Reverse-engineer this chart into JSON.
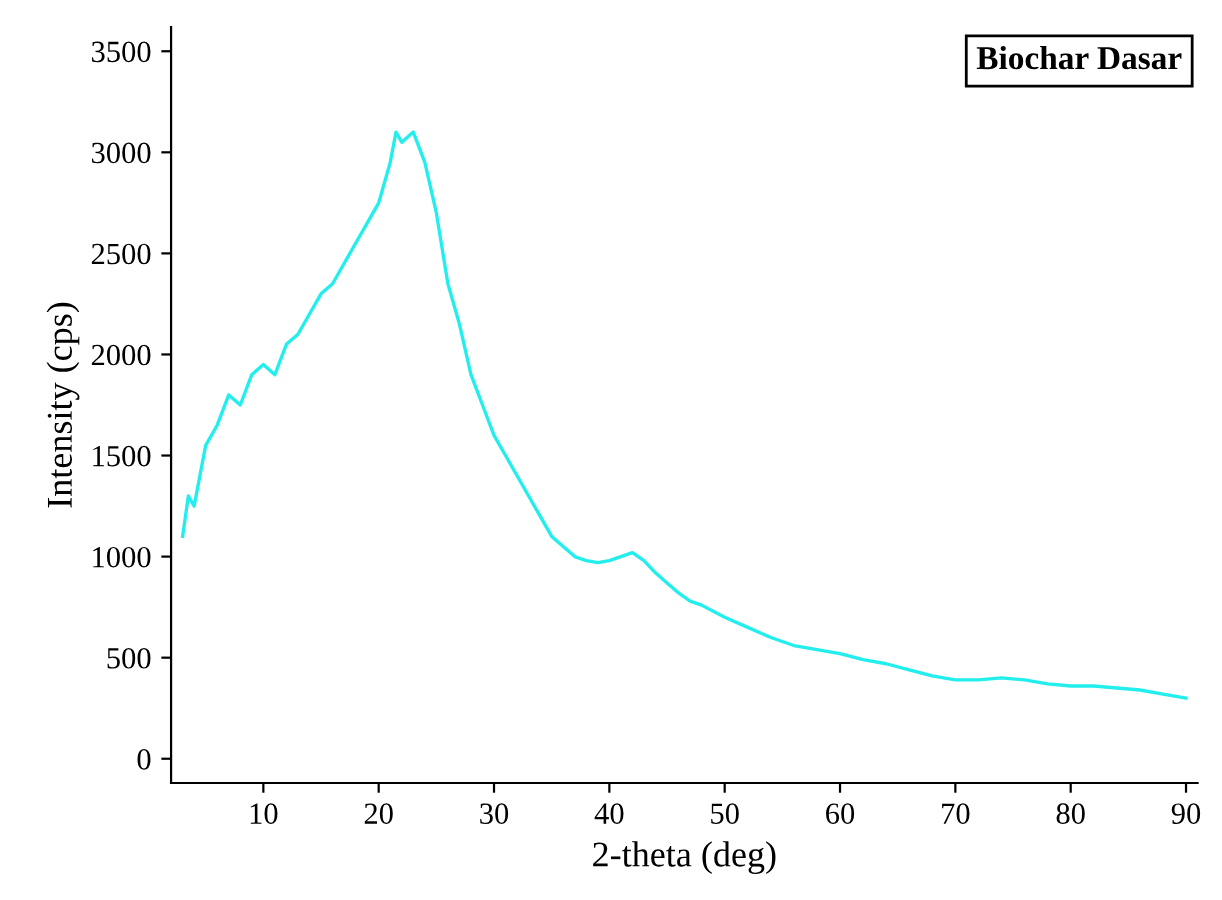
{
  "chart_data": {
    "type": "line",
    "xlabel": "2-theta (deg)",
    "ylabel": "Intensity (cps)",
    "annotations": [
      "Biochar Dasar"
    ],
    "x": [
      3,
      3.5,
      4,
      5,
      6,
      7,
      8,
      9,
      10,
      11,
      12,
      13,
      14,
      15,
      16,
      17,
      18,
      19,
      20,
      21,
      21.5,
      22,
      23,
      24,
      25,
      26,
      27,
      28,
      29,
      30,
      31,
      32,
      33,
      34,
      35,
      36,
      37,
      38,
      39,
      40,
      41,
      42,
      43,
      44,
      45,
      46,
      47,
      48,
      50,
      52,
      54,
      56,
      58,
      60,
      62,
      64,
      66,
      68,
      70,
      72,
      74,
      76,
      78,
      80,
      82,
      84,
      86,
      88,
      90
    ],
    "series": [
      {
        "color": "#22eeee",
        "values": [
          1100,
          1300,
          1250,
          1550,
          1650,
          1800,
          1750,
          1900,
          1950,
          1900,
          2050,
          2100,
          2200,
          2300,
          2350,
          2450,
          2550,
          2650,
          2750,
          2950,
          3100,
          3050,
          3100,
          2950,
          2700,
          2350,
          2150,
          1900,
          1750,
          1600,
          1500,
          1400,
          1300,
          1200,
          1100,
          1050,
          1000,
          980,
          970,
          980,
          1000,
          1020,
          980,
          920,
          870,
          820,
          780,
          760,
          700,
          650,
          600,
          560,
          540,
          520,
          490,
          470,
          440,
          410,
          390,
          390,
          400,
          390,
          370,
          360,
          360,
          350,
          340,
          320,
          300
        ]
      }
    ],
    "xlim": [
      2,
      91
    ],
    "ylim": [
      -120,
      3620
    ],
    "xticks": [
      10,
      20,
      30,
      40,
      50,
      60,
      70,
      80,
      90
    ],
    "yticks": [
      0,
      500,
      1000,
      1500,
      2000,
      2500,
      3000,
      3500
    ],
    "grid": false,
    "legend": false,
    "marker": "none",
    "line_style": "solid"
  }
}
